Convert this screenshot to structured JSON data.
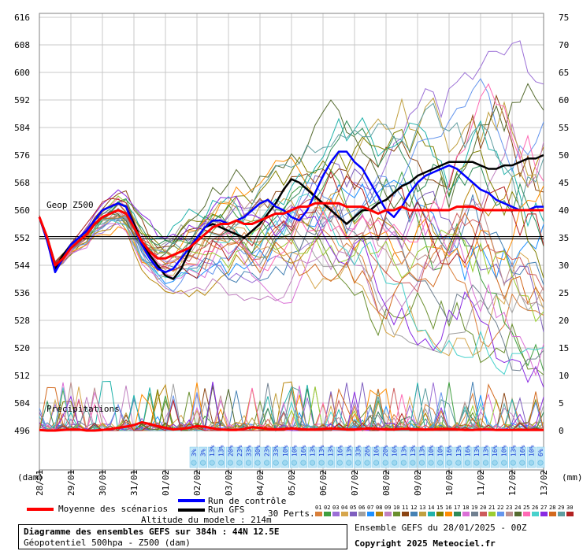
{
  "header": {},
  "chart_data": {
    "type": "line",
    "title": "Diagramme des ensembles GEFS sur 384h : 44N 12.5E",
    "subtitle": "Géopotentiel 500hpa - Z500 (dam)",
    "ylabel_left": "(dam)",
    "ylabel_right": "(mm)",
    "left_axis": {
      "min": 496,
      "max": 616,
      "ticks": [
        496,
        504,
        512,
        520,
        528,
        536,
        544,
        552,
        560,
        568,
        576,
        584,
        592,
        600,
        608,
        616
      ]
    },
    "right_axis": {
      "min": 0,
      "max": 75,
      "ticks": [
        0,
        5,
        10,
        15,
        20,
        25,
        30,
        35,
        40,
        45,
        50,
        55,
        60,
        65,
        70,
        75
      ]
    },
    "x_ticks": [
      "28/01",
      "29/01",
      "30/01",
      "31/01",
      "01/02",
      "02/02",
      "03/02",
      "04/02",
      "05/02",
      "06/02",
      "07/02",
      "08/02",
      "09/02",
      "10/02",
      "11/02",
      "12/02",
      "13/02"
    ],
    "grid": true,
    "labels": {
      "geop": "Geop Z500",
      "precip": "Précipitations"
    },
    "reference_line": 552,
    "x_step_hours": 6,
    "mean_z500": [
      558,
      552,
      544,
      546,
      549,
      551,
      553,
      556,
      558,
      559,
      560,
      559,
      555,
      551,
      548,
      546,
      546,
      547,
      548,
      549,
      551,
      553,
      555,
      556,
      556,
      557,
      556,
      556,
      557,
      558,
      559,
      559,
      560,
      561,
      561,
      562,
      562,
      562,
      562,
      561,
      561,
      561,
      560,
      559,
      560,
      560,
      561,
      560,
      560,
      560,
      560,
      560,
      560,
      561,
      561,
      561,
      560,
      560,
      560,
      560,
      560,
      560,
      560,
      560,
      560
    ],
    "control_z500": [
      558,
      551,
      542,
      546,
      550,
      552,
      554,
      557,
      560,
      561,
      562,
      561,
      555,
      550,
      546,
      543,
      542,
      543,
      546,
      549,
      552,
      555,
      557,
      557,
      556,
      557,
      558,
      560,
      562,
      563,
      561,
      560,
      558,
      557,
      560,
      565,
      570,
      574,
      577,
      577,
      574,
      572,
      568,
      564,
      560,
      558,
      561,
      565,
      568,
      570,
      571,
      572,
      573,
      572,
      570,
      568,
      566,
      565,
      563,
      562,
      561,
      560,
      560,
      561,
      561
    ],
    "gfs_z500": [
      558,
      551,
      543,
      547,
      550,
      552,
      554,
      557,
      560,
      561,
      562,
      561,
      556,
      551,
      547,
      544,
      541,
      540,
      543,
      548,
      552,
      555,
      556,
      555,
      554,
      553,
      552,
      554,
      556,
      559,
      562,
      566,
      569,
      568,
      566,
      564,
      562,
      560,
      558,
      556,
      558,
      560,
      560,
      562,
      563,
      565,
      567,
      568,
      570,
      571,
      572,
      573,
      574,
      574,
      574,
      574,
      573,
      572,
      572,
      573,
      573,
      574,
      575,
      575,
      576
    ],
    "mean_precip_mm": [
      0.1,
      0,
      0,
      0.1,
      0.2,
      0.2,
      0,
      0,
      0.1,
      0.3,
      0.5,
      0.7,
      1,
      1.5,
      1.2,
      0.8,
      0.5,
      0.2,
      0.3,
      0.5,
      0.8,
      0.7,
      0.4,
      0.2,
      0.1,
      0.1,
      0.3,
      0.6,
      0.5,
      0.3,
      0.2,
      0.3,
      0.4,
      0.3,
      0.2,
      0.2,
      0.3,
      0.4,
      0.3,
      0.2,
      0.2,
      0.3,
      0.4,
      0.3,
      0.2,
      0.2,
      0.3,
      0.3,
      0.2,
      0.2,
      0.2,
      0.3,
      0.3,
      0.2,
      0.1,
      0.1,
      0.2,
      0.2,
      0.1,
      0.1,
      0.1,
      0.1,
      0.1,
      0.1,
      0.1
    ],
    "precip_probability": [
      "3%",
      "3%",
      "13%",
      "13%",
      "20%",
      "23%",
      "33%",
      "30%",
      "23%",
      "33%",
      "10%",
      "10%",
      "16%",
      "13%",
      "13%",
      "13%",
      "16%",
      "13%",
      "33%",
      "26%",
      "16%",
      "20%",
      "16%",
      "13%",
      "13%",
      "13%",
      "10%",
      "10%",
      "16%",
      "13%",
      "16%",
      "13%",
      "13%",
      "16%",
      "10%",
      "13%",
      "16%",
      "10%",
      "6%"
    ]
  },
  "legend": {
    "mean": {
      "label": "Moyenne des scénarios",
      "color": "#ff0000"
    },
    "control": {
      "label": "Run de contrôle",
      "color": "#0000ff"
    },
    "gfs": {
      "label": "Run GFS",
      "color": "#000000"
    },
    "perts": {
      "label": "30 Perts.",
      "numbers": [
        "01",
        "02",
        "03",
        "04",
        "05",
        "06",
        "07",
        "08",
        "09",
        "10",
        "11",
        "12",
        "13",
        "14",
        "15",
        "16",
        "17",
        "18",
        "19",
        "20",
        "21",
        "22",
        "23",
        "24",
        "25",
        "26",
        "27",
        "28",
        "29",
        "30"
      ],
      "colors": [
        "#d97f3a",
        "#3f9f3f",
        "#9b6fd6",
        "#d6a64c",
        "#7f5fbf",
        "#a0a0a0",
        "#1e90ff",
        "#b8860b",
        "#c080c0",
        "#6a8f2f",
        "#8b4513",
        "#4682b4",
        "#c0a040",
        "#20b2aa",
        "#808000",
        "#ff8c00",
        "#2e8b57",
        "#da70d6",
        "#708090",
        "#cd5c5c",
        "#9acd32",
        "#6495ed",
        "#bc8f8f",
        "#556b2f",
        "#ff69b4",
        "#48d1cc",
        "#8a2be2",
        "#d2691e",
        "#5f9ea0",
        "#b22222"
      ]
    }
  },
  "footer": {
    "altitude": "Altitude du modele : 214m",
    "title": "Diagramme des ensembles GEFS sur 384h : 44N 12.5E",
    "subtitle": "Géopotentiel 500hpa - Z500 (dam)",
    "ensemble": "Ensemble GEFS du 28/01/2025 - 00Z",
    "copyright": "Copyright 2025 Meteociel.fr"
  }
}
